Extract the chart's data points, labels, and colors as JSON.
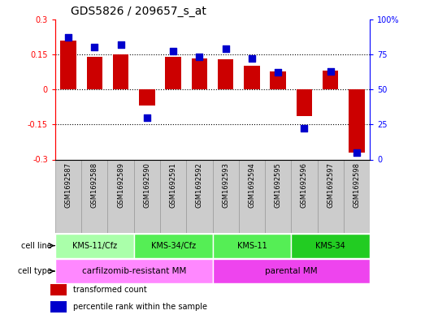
{
  "title": "GDS5826 / 209657_s_at",
  "samples": [
    "GSM1692587",
    "GSM1692588",
    "GSM1692589",
    "GSM1692590",
    "GSM1692591",
    "GSM1692592",
    "GSM1692593",
    "GSM1692594",
    "GSM1692595",
    "GSM1692596",
    "GSM1692597",
    "GSM1692598"
  ],
  "transformed_count": [
    0.21,
    0.14,
    0.148,
    -0.07,
    0.14,
    0.132,
    0.13,
    0.1,
    0.075,
    -0.115,
    0.08,
    -0.27
  ],
  "percentile_rank": [
    87,
    80,
    82,
    30,
    77,
    73,
    79,
    72,
    62,
    22,
    63,
    5
  ],
  "ylim_left": [
    -0.3,
    0.3
  ],
  "ylim_right": [
    0,
    100
  ],
  "yticks_left": [
    -0.3,
    -0.15,
    0,
    0.15,
    0.3
  ],
  "yticks_right": [
    0,
    25,
    50,
    75,
    100
  ],
  "bar_color": "#cc0000",
  "dot_color": "#0000cc",
  "cell_line_groups": [
    {
      "label": "KMS-11/Cfz",
      "start": 0,
      "end": 3,
      "color": "#aaffaa"
    },
    {
      "label": "KMS-34/Cfz",
      "start": 3,
      "end": 6,
      "color": "#55ee55"
    },
    {
      "label": "KMS-11",
      "start": 6,
      "end": 9,
      "color": "#55ee55"
    },
    {
      "label": "KMS-34",
      "start": 9,
      "end": 12,
      "color": "#22cc22"
    }
  ],
  "cell_type_groups": [
    {
      "label": "carfilzomib-resistant MM",
      "start": 0,
      "end": 6,
      "color": "#ff88ff"
    },
    {
      "label": "parental MM",
      "start": 6,
      "end": 12,
      "color": "#ee44ee"
    }
  ],
  "cell_line_label": "cell line",
  "cell_type_label": "cell type",
  "legend_items": [
    {
      "label": "transformed count",
      "color": "#cc0000"
    },
    {
      "label": "percentile rank within the sample",
      "color": "#0000cc"
    }
  ],
  "hline_positions": [
    -0.15,
    0.0,
    0.15
  ],
  "bar_width": 0.6,
  "sample_cell_color": "#cccccc",
  "sample_cell_edge": "#999999"
}
